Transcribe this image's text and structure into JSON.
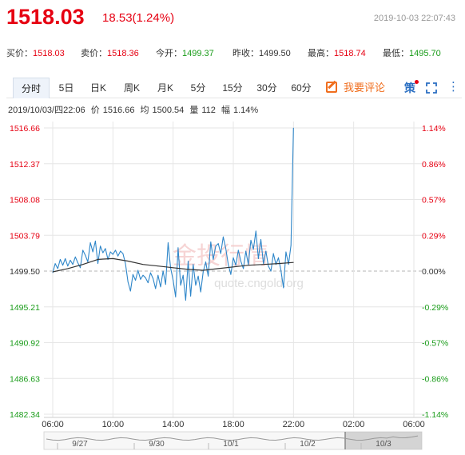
{
  "header": {
    "last_price": "1518.03",
    "change": "18.53(1.24%)",
    "timestamp": "2019-10-03 22:07:43"
  },
  "quote": [
    {
      "label": "买价：",
      "value": "1518.03",
      "color": "red"
    },
    {
      "label": "卖价：",
      "value": "1518.36",
      "color": "red"
    },
    {
      "label": "今开：",
      "value": "1499.37",
      "color": "green"
    },
    {
      "label": "昨收：",
      "value": "1499.50",
      "color": "neutral"
    },
    {
      "label": "最高：",
      "value": "1518.74",
      "color": "red"
    },
    {
      "label": "最低：",
      "value": "1495.70",
      "color": "green"
    }
  ],
  "toolbar": {
    "tabs": [
      "分时",
      "5日",
      "日K",
      "周K",
      "月K",
      "5分",
      "15分",
      "30分",
      "60分"
    ],
    "active_tab": "分时",
    "comment_label": "我要评论",
    "ce_label": "策",
    "expand_icon": "fullscreen-icon",
    "more_icon": "more-vertical-icon"
  },
  "info": {
    "datetime": "2019/10/03/四22:06",
    "price_label": "价",
    "price": "1516.66",
    "avg_label": "均",
    "avg": "1500.54",
    "vol_label": "量",
    "vol": "112",
    "amp_label": "幅",
    "amp": "1.14%"
  },
  "watermark": {
    "logo_text": "金投行情",
    "url": "quote.cngold.org"
  },
  "colors": {
    "up": "#e60012",
    "down": "#1a9c1a",
    "line": "#2e86c9",
    "avg_line": "#333333",
    "grid": "#e6e6e6"
  },
  "chart_data": {
    "type": "line",
    "title": "",
    "prev_close": 1499.5,
    "ylim": [
      1482.34,
      1516.66
    ],
    "y_ticks_left": [
      "1516.66",
      "1512.37",
      "1508.08",
      "1503.79",
      "1499.50",
      "1495.21",
      "1490.92",
      "1486.63",
      "1482.34"
    ],
    "y_ticks_right": [
      "1.14%",
      "0.86%",
      "0.57%",
      "0.29%",
      "0.00%",
      "-0.29%",
      "-0.57%",
      "-0.86%",
      "-1.14%"
    ],
    "x_ticks": [
      "06:00",
      "10:00",
      "14:00",
      "18:00",
      "22:00",
      "02:00",
      "06:00"
    ],
    "x_minutes": [
      0,
      240,
      480,
      720,
      960,
      1200,
      1440
    ],
    "navigator_labels": [
      "9/27",
      "9/30",
      "10/1",
      "10/2",
      "10/3"
    ],
    "series": [
      {
        "x": [
          0,
          10,
          20,
          30,
          40,
          50,
          60,
          70,
          80,
          90,
          100,
          110,
          120,
          130,
          140,
          150,
          160,
          170,
          180,
          190,
          200,
          210,
          220,
          230,
          240,
          250,
          260,
          270,
          280,
          290,
          300,
          310,
          320,
          330,
          340,
          350,
          360,
          370,
          380,
          390,
          400,
          410,
          420,
          430,
          440,
          450,
          460,
          470,
          480,
          490,
          500,
          510,
          520,
          530,
          540,
          550,
          560,
          570,
          580,
          590,
          600,
          610,
          620,
          630,
          640,
          650,
          660,
          670,
          680,
          690,
          700,
          710,
          720,
          730,
          740,
          750,
          760,
          770,
          780,
          790,
          800,
          810,
          820,
          830,
          840,
          850,
          860,
          870,
          880,
          890,
          900,
          910,
          920,
          930,
          940,
          950,
          960
        ],
        "values": [
          1499.3,
          1500.4,
          1499.8,
          1500.9,
          1500.2,
          1501.0,
          1500.1,
          1500.8,
          1500.3,
          1501.2,
          1500.5,
          1499.9,
          1502.0,
          1501.4,
          1500.6,
          1502.9,
          1501.8,
          1503.1,
          1500.4,
          1502.5,
          1501.7,
          1502.2,
          1500.9,
          1501.8,
          1501.5,
          1502.0,
          1501.3,
          1501.9,
          1501.6,
          1500.4,
          1498.2,
          1497.1,
          1499.1,
          1498.4,
          1499.6,
          1498.5,
          1499.0,
          1498.7,
          1498.1,
          1499.3,
          1498.6,
          1497.4,
          1499.0,
          1497.6,
          1499.5,
          1497.9,
          1502.9,
          1499.9,
          1498.4,
          1496.4,
          1502.3,
          1497.8,
          1499.0,
          1496.0,
          1500.7,
          1496.5,
          1500.3,
          1497.8,
          1498.9,
          1497.0,
          1499.4,
          1500.6,
          1498.9,
          1503.0,
          1500.9,
          1502.5,
          1502.8,
          1501.6,
          1503.6,
          1502.2,
          1500.3,
          1499.1,
          1501.1,
          1500.2,
          1502.0,
          1500.7,
          1499.8,
          1501.9,
          1500.3,
          1503.2,
          1502.1,
          1504.3,
          1501.0,
          1503.3,
          1500.4,
          1501.9,
          1500.1,
          1499.5,
          1501.6,
          1500.3,
          1501.1,
          1499.6,
          1497.5,
          1501.8,
          1500.3,
          1502.6,
          1516.66
        ]
      },
      {
        "x": [
          0,
          60,
          120,
          180,
          240,
          300,
          360,
          420,
          480,
          540,
          600,
          660,
          720,
          780,
          840,
          900,
          960
        ],
        "values": [
          1499.4,
          1499.8,
          1500.3,
          1500.9,
          1501.0,
          1500.7,
          1500.3,
          1500.1,
          1499.9,
          1499.7,
          1499.6,
          1499.8,
          1500.0,
          1500.2,
          1500.3,
          1500.4,
          1500.54
        ]
      }
    ]
  }
}
